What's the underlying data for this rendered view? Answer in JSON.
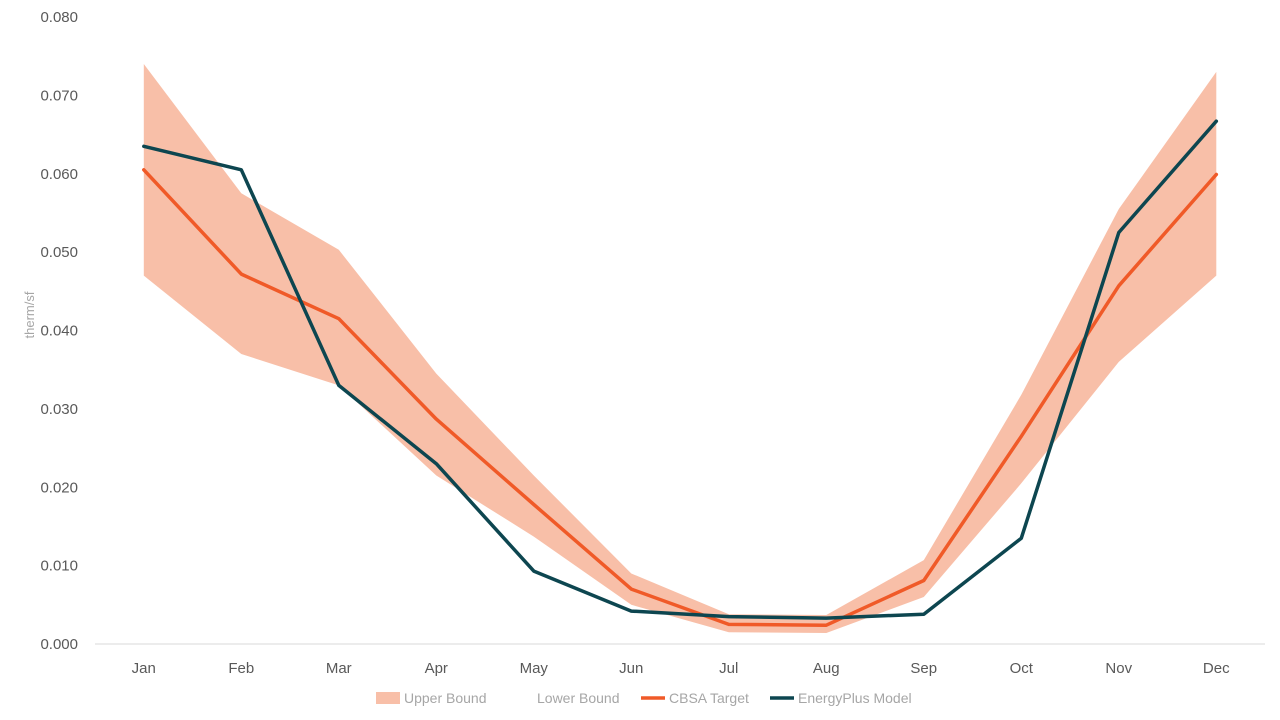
{
  "chart_data": {
    "type": "line",
    "title": "",
    "xlabel": "",
    "ylabel": "therm/sf",
    "categories": [
      "Jan",
      "Feb",
      "Mar",
      "Apr",
      "May",
      "Jun",
      "Jul",
      "Aug",
      "Sep",
      "Oct",
      "Nov",
      "Dec"
    ],
    "ylim": [
      0,
      0.08
    ],
    "yticks": [
      "0.000",
      "0.010",
      "0.020",
      "0.030",
      "0.040",
      "0.050",
      "0.060",
      "0.070",
      "0.080"
    ],
    "ytick_values": [
      0,
      0.01,
      0.02,
      0.03,
      0.04,
      0.05,
      0.06,
      0.07,
      0.08
    ],
    "grid": false,
    "legend_position": "bottom",
    "series": [
      {
        "name": "Upper Bound",
        "kind": "band-upper",
        "color": "#f8bfa8",
        "values": [
          0.074,
          0.0575,
          0.0503,
          0.0345,
          0.0215,
          0.009,
          0.0038,
          0.0037,
          0.0107,
          0.0318,
          0.0555,
          0.073
        ]
      },
      {
        "name": "Lower Bound",
        "kind": "band-lower",
        "color": "#ffffff",
        "values": [
          0.047,
          0.037,
          0.033,
          0.0215,
          0.0137,
          0.005,
          0.0015,
          0.0014,
          0.006,
          0.0205,
          0.036,
          0.047
        ]
      },
      {
        "name": "CBSA Target",
        "kind": "line",
        "color": "#f05a28",
        "values": [
          0.0605,
          0.0472,
          0.0415,
          0.0287,
          0.0178,
          0.007,
          0.0025,
          0.0024,
          0.0081,
          0.0265,
          0.0457,
          0.0599
        ]
      },
      {
        "name": "EnergyPlus Model",
        "kind": "line",
        "color": "#0d4650",
        "values": [
          0.0635,
          0.0605,
          0.033,
          0.023,
          0.0093,
          0.0042,
          0.0035,
          0.0033,
          0.0038,
          0.0135,
          0.0525,
          0.0667
        ]
      }
    ]
  }
}
